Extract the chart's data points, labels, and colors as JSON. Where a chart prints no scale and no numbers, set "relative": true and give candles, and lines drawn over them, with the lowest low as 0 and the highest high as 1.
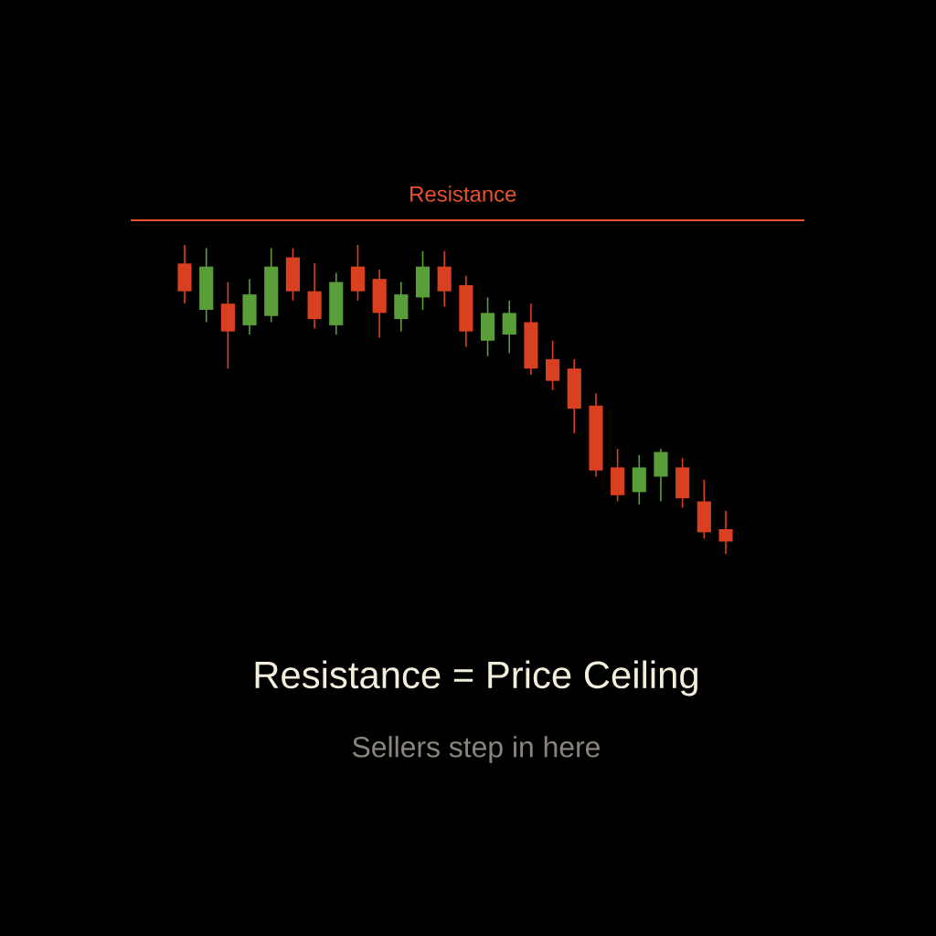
{
  "chart_data": {
    "type": "candlestick",
    "title": "Resistance = Price Ceiling",
    "subtitle": "Sellers step in here",
    "relative": true,
    "categories": [
      null,
      null,
      null,
      null,
      null,
      null,
      null,
      null,
      null,
      null,
      null,
      null,
      null,
      null,
      null,
      null,
      null,
      null,
      null,
      null,
      null,
      null,
      null,
      null,
      null,
      null
    ],
    "ohlc": [
      [
        0.94,
        1.0,
        0.81,
        0.85
      ],
      [
        0.79,
        0.99,
        0.75,
        0.93
      ],
      [
        0.81,
        0.88,
        0.6,
        0.72
      ],
      [
        0.74,
        0.89,
        0.71,
        0.84
      ],
      [
        0.77,
        0.99,
        0.75,
        0.93
      ],
      [
        0.96,
        0.99,
        0.82,
        0.85
      ],
      [
        0.85,
        0.94,
        0.73,
        0.76
      ],
      [
        0.74,
        0.91,
        0.71,
        0.88
      ],
      [
        0.93,
        1.0,
        0.82,
        0.85
      ],
      [
        0.89,
        0.92,
        0.7,
        0.78
      ],
      [
        0.76,
        0.88,
        0.72,
        0.84
      ],
      [
        0.83,
        0.98,
        0.79,
        0.93
      ],
      [
        0.93,
        0.98,
        0.8,
        0.85
      ],
      [
        0.87,
        0.9,
        0.67,
        0.72
      ],
      [
        0.69,
        0.83,
        0.64,
        0.78
      ],
      [
        0.71,
        0.82,
        0.65,
        0.78
      ],
      [
        0.75,
        0.81,
        0.58,
        0.6
      ],
      [
        0.63,
        0.69,
        0.53,
        0.56
      ],
      [
        0.6,
        0.63,
        0.39,
        0.47
      ],
      [
        0.48,
        0.52,
        0.25,
        0.27
      ],
      [
        0.28,
        0.34,
        0.17,
        0.19
      ],
      [
        0.2,
        0.32,
        0.16,
        0.28
      ],
      [
        0.25,
        0.34,
        0.17,
        0.33
      ],
      [
        0.28,
        0.31,
        0.15,
        0.18
      ],
      [
        0.17,
        0.24,
        0.05,
        0.07
      ],
      [
        0.08,
        0.14,
        0.0,
        0.04
      ]
    ],
    "colors": [
      "#d9401f",
      "#5a9e3a",
      "#d9401f",
      "#5a9e3a",
      "#5a9e3a",
      "#d9401f",
      "#d9401f",
      "#5a9e3a",
      "#d9401f",
      "#d9401f",
      "#5a9e3a",
      "#5a9e3a",
      "#d9401f",
      "#d9401f",
      "#5a9e3a",
      "#5a9e3a",
      "#d9401f",
      "#d9401f",
      "#d9401f",
      "#d9401f",
      "#d9401f",
      "#5a9e3a",
      "#5a9e3a",
      "#d9401f",
      "#d9401f",
      "#d9401f"
    ],
    "ref_lines": [
      {
        "axis": "y",
        "value": 1.08,
        "label": "Resistance",
        "color": "#e8532a"
      }
    ]
  }
}
